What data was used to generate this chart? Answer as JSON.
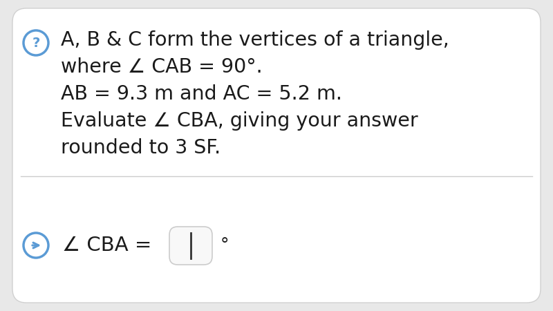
{
  "bg_color": "#e8e8e8",
  "card_bg": "#ffffff",
  "question_icon_color": "#5b9bd5",
  "answer_icon_color": "#5b9bd5",
  "line1": "A, B & C form the vertices of a triangle,",
  "line2": "where ∠ CAB = 90°.",
  "line3": "AB = 9.3 m and AC = 5.2 m.",
  "line4": "Evaluate ∠ CBA, giving your answer",
  "line5": "rounded to 3 SF.",
  "answer_label": "∠ CBA =",
  "degree_symbol": "°",
  "text_color": "#1a1a1a",
  "icon_q_text": "?",
  "divider_color": "#cccccc",
  "input_box_color": "#f8f8f8",
  "input_box_border": "#cccccc",
  "font_size_main": 20.5,
  "font_size_answer": 21,
  "font_size_icon": 14
}
